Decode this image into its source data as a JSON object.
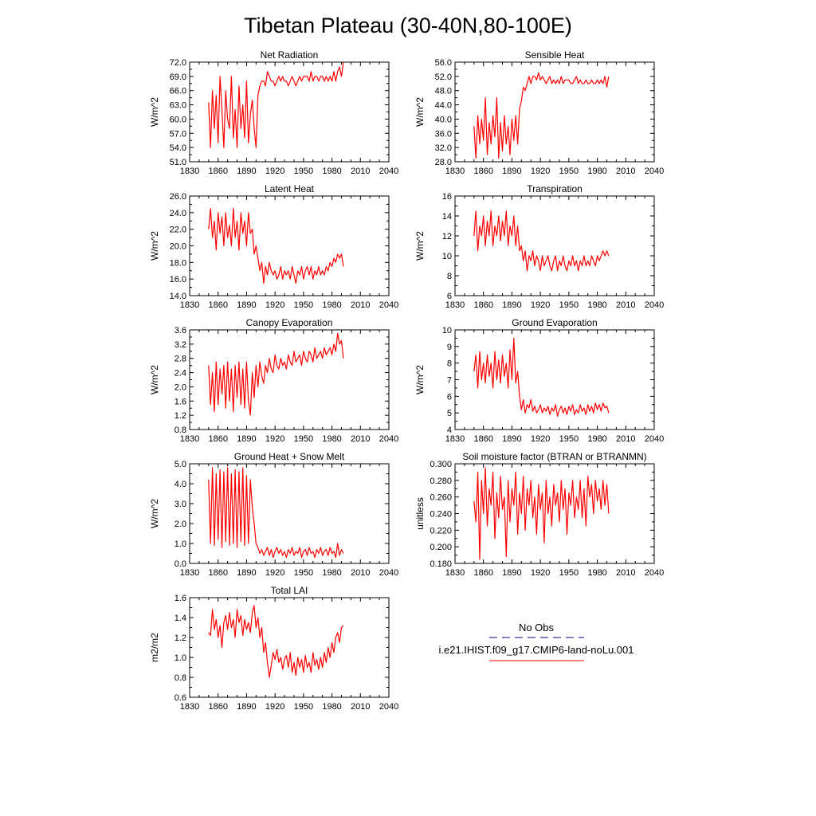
{
  "figure": {
    "title": "Tibetan Plateau (30-40N,80-100E)",
    "line_color": "#ff0000",
    "obs_color": "#000080"
  },
  "legend": {
    "obs_label": "No Obs",
    "model_label": "i.e21.IHIST.f09_g17.CMIP6-land-noLu.001"
  },
  "chart_data": [
    {
      "type": "line",
      "title": "Net Radiation",
      "ylabel": "W/m^2",
      "xlim": [
        1830,
        2040
      ],
      "xticks": [
        "1830",
        "1860",
        "1890",
        "1920",
        "1950",
        "1980",
        "2010",
        "2040"
      ],
      "ylim": [
        51.0,
        72.0
      ],
      "yticks": [
        "51.0",
        "54.0",
        "57.0",
        "60.0",
        "63.0",
        "66.0",
        "69.0",
        "72.0"
      ],
      "series": [
        {
          "x_start": 1850,
          "x_step": 2,
          "values": [
            63.5,
            54,
            66,
            58,
            65,
            55,
            69,
            62,
            54,
            66,
            60,
            58,
            69,
            56,
            62,
            54,
            67,
            58,
            63,
            56,
            68,
            55,
            61,
            64,
            58,
            54,
            65,
            67,
            68,
            68,
            67,
            70,
            69,
            68,
            68,
            67,
            68,
            69,
            68,
            69,
            68,
            68,
            67,
            68,
            69,
            68,
            67,
            68,
            69,
            68,
            69,
            69,
            69,
            68,
            70,
            68,
            69,
            69,
            68,
            69,
            69,
            68,
            69,
            68,
            69,
            68,
            70,
            68,
            70,
            71,
            69,
            72
          ]
        }
      ]
    },
    {
      "type": "line",
      "title": "Sensible Heat",
      "ylabel": "W/m^2",
      "xlim": [
        1830,
        2040
      ],
      "xticks": [
        "1830",
        "1860",
        "1890",
        "1920",
        "1950",
        "1980",
        "2010",
        "2040"
      ],
      "ylim": [
        28.0,
        56.0
      ],
      "yticks": [
        "28.0",
        "32.0",
        "36.0",
        "40.0",
        "44.0",
        "48.0",
        "52.0",
        "56.0"
      ],
      "series": [
        {
          "x_start": 1850,
          "x_step": 2,
          "values": [
            38,
            29,
            41,
            33,
            40,
            34,
            46,
            30,
            39,
            33,
            41,
            35,
            46,
            29,
            39,
            31,
            41,
            33,
            38,
            30,
            40,
            34,
            41,
            33,
            43,
            45,
            49,
            48,
            50,
            52,
            50,
            52,
            52,
            51,
            53,
            51,
            52,
            51,
            50,
            51,
            52,
            50,
            51,
            50,
            51,
            50,
            52,
            50,
            51,
            51,
            51,
            50,
            50,
            51,
            52,
            50,
            51,
            50,
            50,
            51,
            50,
            50,
            51,
            50,
            50,
            51,
            50,
            51,
            50,
            52,
            49,
            52
          ]
        }
      ]
    },
    {
      "type": "line",
      "title": "Latent Heat",
      "ylabel": "W/m^2",
      "xlim": [
        1830,
        2040
      ],
      "xticks": [
        "1830",
        "1860",
        "1890",
        "1920",
        "1950",
        "1980",
        "2010",
        "2040"
      ],
      "ylim": [
        14.0,
        26.0
      ],
      "yticks": [
        "14.0",
        "16.0",
        "18.0",
        "20.0",
        "22.0",
        "24.0",
        "26.0"
      ],
      "series": [
        {
          "x_start": 1850,
          "x_step": 2,
          "values": [
            22,
            24.5,
            21,
            23,
            19.5,
            24,
            21.5,
            23.5,
            20,
            24,
            21,
            22.5,
            20,
            24.5,
            21,
            23,
            19.5,
            24,
            21.5,
            23,
            20,
            24,
            21.5,
            22,
            19,
            20,
            18.5,
            17,
            18,
            15.5,
            17.5,
            16.5,
            18,
            17,
            16.5,
            17,
            16,
            16.5,
            17.5,
            16,
            17,
            16.5,
            17,
            16,
            17.5,
            16.5,
            15.5,
            17,
            16.5,
            17.5,
            16,
            17,
            17.5,
            16.5,
            17.5,
            16,
            17,
            16.5,
            17.5,
            16.5,
            17,
            16.5,
            17.5,
            17,
            18,
            17.5,
            18.5,
            18,
            19,
            18.5,
            19,
            17.5
          ]
        }
      ]
    },
    {
      "type": "line",
      "title": "Transpiration",
      "ylabel": "W/m^2",
      "xlim": [
        1830,
        2040
      ],
      "xticks": [
        "1830",
        "1860",
        "1890",
        "1920",
        "1950",
        "1980",
        "2010",
        "2040"
      ],
      "ylim": [
        6,
        16
      ],
      "yticks": [
        "6",
        "8",
        "10",
        "12",
        "14",
        "16"
      ],
      "series": [
        {
          "x_start": 1850,
          "x_step": 2,
          "values": [
            12,
            14.5,
            10.5,
            13,
            12,
            14,
            11,
            13.5,
            12,
            14.5,
            11,
            13,
            12,
            14,
            11.5,
            13.5,
            12,
            14.5,
            11,
            13,
            12,
            14,
            11,
            13,
            10.5,
            11,
            9.5,
            10.5,
            8.5,
            10,
            9.5,
            10.5,
            9,
            10,
            9.5,
            8.5,
            10,
            9,
            9.5,
            10,
            9,
            8.5,
            9.5,
            10,
            8.5,
            9.5,
            9,
            10,
            9,
            8.5,
            9.5,
            9,
            10,
            9,
            9.5,
            8.5,
            9.5,
            9,
            10,
            9,
            9.5,
            9,
            10,
            9.5,
            9,
            10,
            9.5,
            10,
            10.5,
            10,
            10.5,
            10
          ]
        }
      ]
    },
    {
      "type": "line",
      "title": "Canopy Evaporation",
      "ylabel": "W/m^2",
      "xlim": [
        1830,
        2040
      ],
      "xticks": [
        "1830",
        "1860",
        "1890",
        "1920",
        "1950",
        "1980",
        "2010",
        "2040"
      ],
      "ylim": [
        0.8,
        3.6
      ],
      "yticks": [
        "0.8",
        "1.2",
        "1.6",
        "2.0",
        "2.4",
        "2.8",
        "3.2",
        "3.6"
      ],
      "series": [
        {
          "x_start": 1850,
          "x_step": 2,
          "values": [
            2.6,
            1.5,
            2.4,
            1.3,
            2.7,
            1.5,
            2.5,
            1.8,
            2.6,
            1.4,
            2.7,
            1.6,
            2.5,
            1.3,
            2.6,
            1.7,
            2.7,
            1.5,
            2.5,
            1.4,
            2.7,
            1.6,
            1.2,
            2.4,
            1.7,
            2.6,
            2.0,
            2.7,
            2.3,
            2.1,
            2.6,
            2.4,
            2.8,
            2.5,
            2.4,
            2.9,
            2.6,
            2.5,
            2.8,
            2.6,
            2.7,
            2.5,
            2.9,
            2.7,
            2.6,
            3.0,
            2.7,
            2.8,
            2.9,
            2.6,
            3.0,
            2.8,
            2.7,
            3.0,
            2.9,
            2.7,
            3.1,
            2.8,
            2.9,
            3.0,
            2.8,
            3.1,
            2.9,
            3.0,
            3.1,
            2.9,
            3.2,
            3.0,
            3.5,
            3.2,
            3.3,
            2.8
          ]
        }
      ]
    },
    {
      "type": "line",
      "title": "Ground Evaporation",
      "ylabel": "W/m^2",
      "xlim": [
        1830,
        2040
      ],
      "xticks": [
        "1830",
        "1860",
        "1890",
        "1920",
        "1950",
        "1980",
        "2010",
        "2040"
      ],
      "ylim": [
        4,
        10
      ],
      "yticks": [
        "4",
        "5",
        "6",
        "7",
        "8",
        "9",
        "10"
      ],
      "series": [
        {
          "x_start": 1850,
          "x_step": 2,
          "values": [
            7.5,
            8.5,
            6.5,
            8.7,
            7,
            8,
            6.8,
            8.5,
            7.2,
            8,
            6.5,
            8.7,
            7,
            8.2,
            6.8,
            8.5,
            7.2,
            8,
            6.5,
            8.8,
            7,
            9.5,
            6.8,
            7.5,
            6,
            5.2,
            5.8,
            5,
            5.5,
            5.3,
            5.8,
            5.1,
            5.4,
            5.0,
            5.2,
            5.5,
            5.0,
            5.3,
            5.1,
            5.4,
            4.9,
            5.3,
            5.1,
            5.5,
            4.8,
            5.2,
            5.4,
            5.0,
            5.3,
            4.9,
            5.4,
            5.1,
            5.5,
            4.9,
            5.2,
            5.0,
            5.5,
            5.1,
            5.3,
            4.9,
            5.5,
            5.1,
            5.4,
            5.0,
            5.6,
            5.2,
            5.5,
            5.1,
            5.6,
            5.3,
            5.4,
            5.0
          ]
        }
      ]
    },
    {
      "type": "line",
      "title": "Ground Heat + Snow Melt",
      "ylabel": "W/m^2",
      "xlim": [
        1830,
        2040
      ],
      "xticks": [
        "1830",
        "1860",
        "1890",
        "1920",
        "1950",
        "1980",
        "2010",
        "2040"
      ],
      "ylim": [
        0.0,
        5.0
      ],
      "yticks": [
        "0.0",
        "1.0",
        "2.0",
        "3.0",
        "4.0",
        "5.0"
      ],
      "series": [
        {
          "x_start": 1850,
          "x_step": 2,
          "values": [
            4.2,
            1.0,
            4.8,
            0.9,
            4.5,
            1.2,
            4.7,
            0.8,
            4.6,
            1.1,
            4.8,
            0.9,
            4.5,
            1.0,
            4.7,
            0.8,
            4.6,
            1.1,
            4.8,
            0.9,
            4.4,
            1.0,
            4.2,
            2.8,
            2.0,
            1.0,
            0.8,
            0.5,
            0.7,
            0.4,
            0.6,
            0.8,
            0.4,
            0.7,
            0.3,
            0.6,
            0.8,
            0.5,
            0.7,
            0.4,
            0.6,
            0.3,
            0.7,
            0.5,
            0.8,
            0.4,
            0.6,
            0.5,
            0.8,
            0.3,
            0.6,
            0.7,
            0.4,
            0.8,
            0.5,
            0.6,
            0.3,
            0.7,
            0.5,
            0.8,
            0.4,
            0.6,
            0.7,
            0.4,
            0.8,
            0.5,
            0.6,
            0.3,
            1.0,
            0.4,
            0.7,
            0.5
          ]
        }
      ]
    },
    {
      "type": "line",
      "title": "Soil moisture factor (BTRAN or BTRANMN)",
      "ylabel": "unitless",
      "xlim": [
        1830,
        2040
      ],
      "xticks": [
        "1830",
        "1860",
        "1890",
        "1920",
        "1950",
        "1980",
        "2010",
        "2040"
      ],
      "ylim": [
        0.18,
        0.3
      ],
      "yticks": [
        "0.180",
        "0.200",
        "0.220",
        "0.240",
        "0.260",
        "0.280",
        "0.300"
      ],
      "series": [
        {
          "x_start": 1850,
          "x_step": 2,
          "values": [
            0.255,
            0.23,
            0.29,
            0.185,
            0.28,
            0.24,
            0.295,
            0.225,
            0.27,
            0.25,
            0.29,
            0.21,
            0.265,
            0.235,
            0.285,
            0.245,
            0.26,
            0.188,
            0.28,
            0.23,
            0.27,
            0.25,
            0.29,
            0.215,
            0.265,
            0.24,
            0.285,
            0.22,
            0.27,
            0.25,
            0.28,
            0.235,
            0.26,
            0.215,
            0.275,
            0.245,
            0.265,
            0.205,
            0.28,
            0.24,
            0.26,
            0.225,
            0.275,
            0.25,
            0.265,
            0.23,
            0.28,
            0.245,
            0.27,
            0.215,
            0.265,
            0.25,
            0.28,
            0.235,
            0.26,
            0.245,
            0.28,
            0.235,
            0.27,
            0.225,
            0.285,
            0.26,
            0.275,
            0.24,
            0.28,
            0.255,
            0.27,
            0.245,
            0.28,
            0.25,
            0.275,
            0.24
          ]
        }
      ]
    },
    {
      "type": "line",
      "title": "Total LAI",
      "ylabel": "m2/m2",
      "xlim": [
        1830,
        2040
      ],
      "xticks": [
        "1830",
        "1860",
        "1890",
        "1920",
        "1950",
        "1980",
        "2010",
        "2040"
      ],
      "ylim": [
        0.6,
        1.6
      ],
      "yticks": [
        "0.6",
        "0.8",
        "1.0",
        "1.2",
        "1.4",
        "1.6"
      ],
      "series": [
        {
          "x_start": 1850,
          "x_step": 2,
          "values": [
            1.25,
            1.22,
            1.48,
            1.28,
            1.38,
            1.2,
            1.32,
            1.1,
            1.35,
            1.42,
            1.28,
            1.45,
            1.3,
            1.38,
            1.2,
            1.48,
            1.35,
            1.42,
            1.22,
            1.38,
            1.28,
            1.35,
            1.25,
            1.45,
            1.52,
            1.3,
            1.4,
            1.2,
            1.3,
            1.05,
            1.15,
            0.95,
            0.8,
            0.92,
            1.05,
            0.98,
            1.08,
            0.95,
            1.0,
            0.88,
            0.98,
            1.02,
            0.9,
            1.05,
            0.85,
            0.95,
            0.82,
            1.0,
            0.9,
            0.98,
            0.85,
            1.02,
            0.9,
            0.95,
            0.85,
            1.05,
            0.92,
            0.98,
            0.88,
            1.0,
            0.9,
            1.05,
            0.95,
            1.1,
            1.0,
            1.15,
            1.05,
            1.2,
            1.25,
            1.15,
            1.3,
            1.32
          ]
        }
      ]
    }
  ]
}
